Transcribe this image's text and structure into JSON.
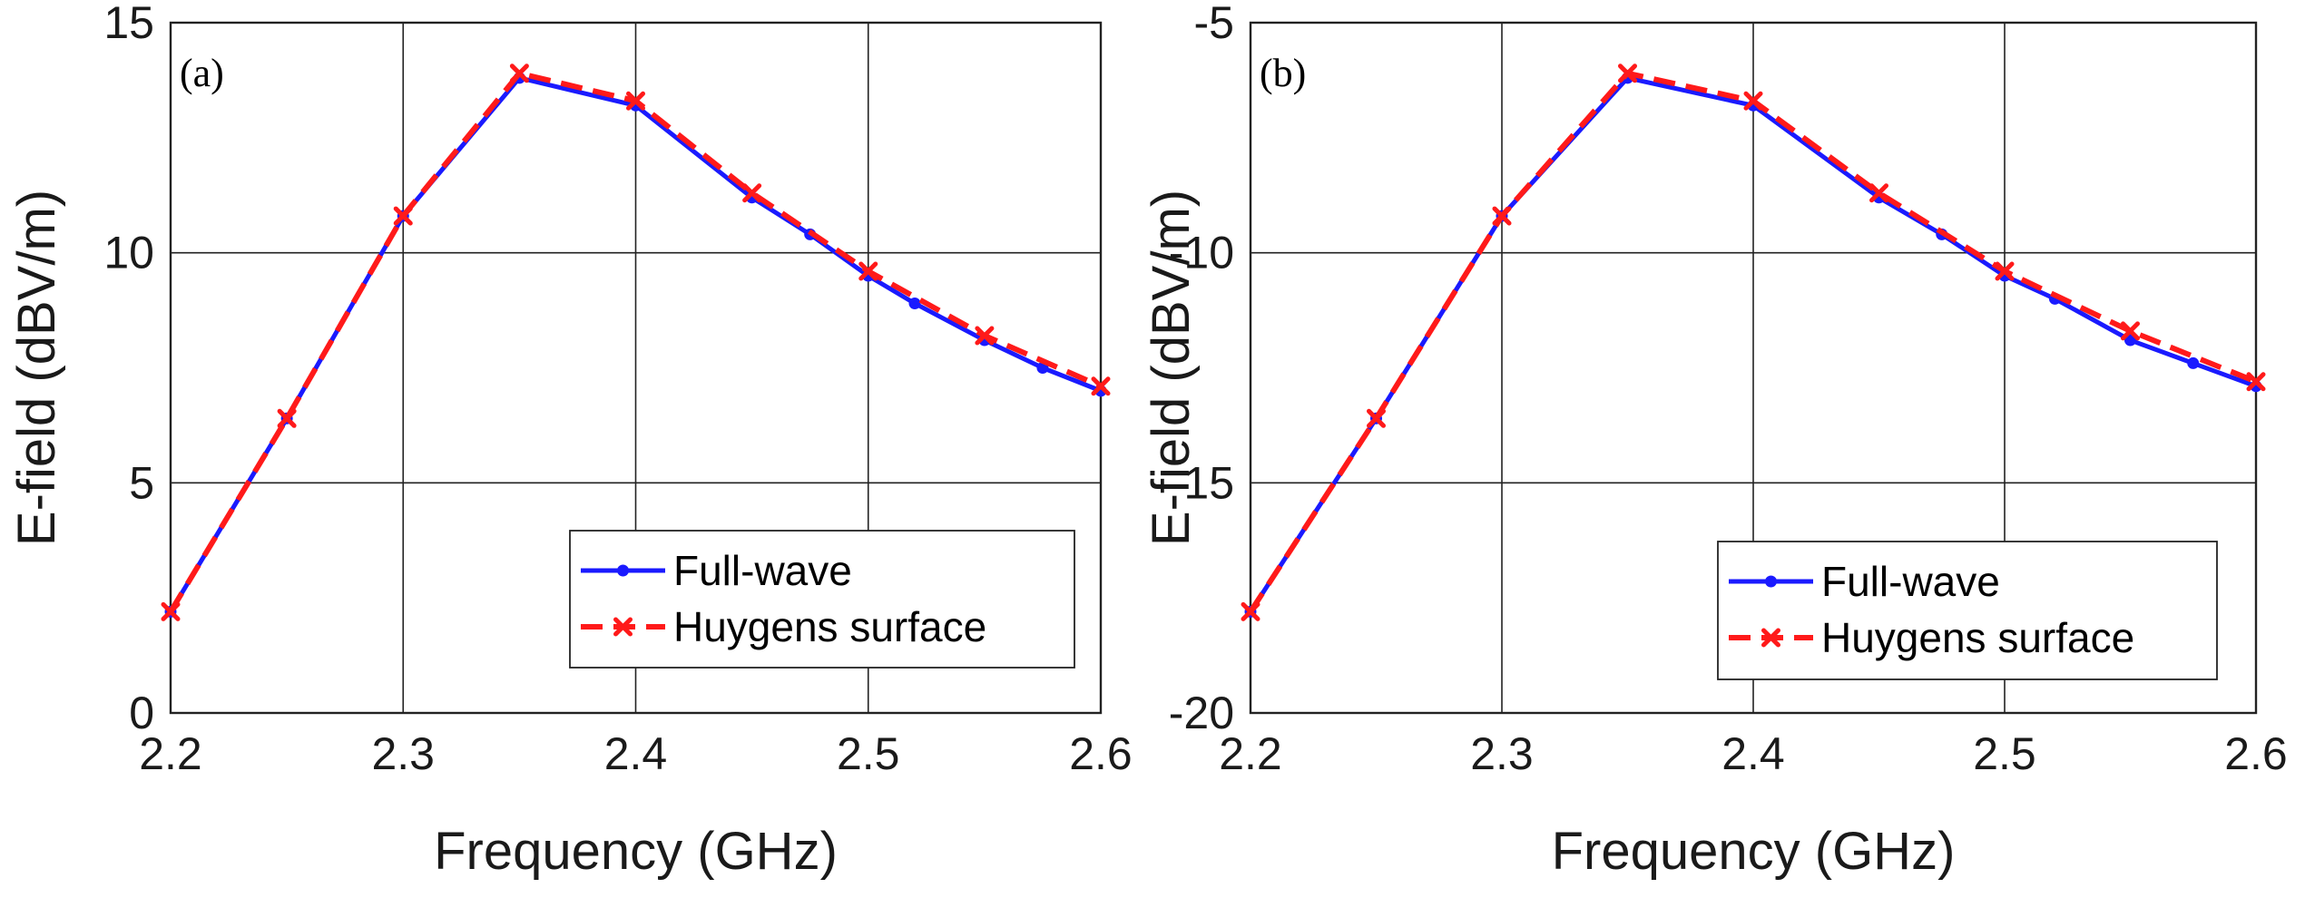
{
  "chart_data": [
    {
      "type": "line",
      "panel_label": "(a)",
      "xlabel": "Frequency (GHz)",
      "ylabel": "E-field (dBV/m)",
      "xlim": [
        2.2,
        2.6
      ],
      "ylim": [
        0,
        15
      ],
      "xticks": [
        "2.2",
        "2.3",
        "2.4",
        "2.5",
        "2.6"
      ],
      "yticks": [
        "0",
        "5",
        "10",
        "15"
      ],
      "grid": true,
      "legend_position": "bottom-right",
      "series": [
        {
          "name": "Full-wave",
          "color": "#1a1aff",
          "style": "solid",
          "marker": "dot",
          "x": [
            2.2,
            2.25,
            2.3,
            2.35,
            2.4,
            2.45,
            2.475,
            2.5,
            2.52,
            2.55,
            2.575,
            2.6
          ],
          "y": [
            2.2,
            6.4,
            10.8,
            13.8,
            13.2,
            11.2,
            10.4,
            9.5,
            8.9,
            8.1,
            7.5,
            7.0
          ]
        },
        {
          "name": "Huygens surface",
          "color": "#ff1a1a",
          "style": "dashed",
          "marker": "x",
          "x": [
            2.2,
            2.25,
            2.3,
            2.35,
            2.4,
            2.45,
            2.5,
            2.55,
            2.6
          ],
          "y": [
            2.2,
            6.4,
            10.8,
            13.9,
            13.3,
            11.3,
            9.6,
            8.2,
            7.1
          ]
        }
      ]
    },
    {
      "type": "line",
      "panel_label": "(b)",
      "xlabel": "Frequency (GHz)",
      "ylabel": "E-field (dBV/m)",
      "xlim": [
        2.2,
        2.6
      ],
      "ylim": [
        -20,
        -5
      ],
      "xticks": [
        "2.2",
        "2.3",
        "2.4",
        "2.5",
        "2.6"
      ],
      "yticks": [
        "-20",
        "-15",
        "-10",
        "-5"
      ],
      "grid": true,
      "legend_position": "bottom-right",
      "series": [
        {
          "name": "Full-wave",
          "color": "#1a1aff",
          "style": "solid",
          "marker": "dot",
          "x": [
            2.2,
            2.25,
            2.3,
            2.35,
            2.4,
            2.45,
            2.475,
            2.5,
            2.52,
            2.55,
            2.575,
            2.6
          ],
          "y": [
            -17.8,
            -13.6,
            -9.2,
            -6.2,
            -6.8,
            -8.8,
            -9.6,
            -10.5,
            -11.0,
            -11.9,
            -12.4,
            -12.9
          ]
        },
        {
          "name": "Huygens surface",
          "color": "#ff1a1a",
          "style": "dashed",
          "marker": "x",
          "x": [
            2.2,
            2.25,
            2.3,
            2.35,
            2.4,
            2.45,
            2.5,
            2.55,
            2.6
          ],
          "y": [
            -17.8,
            -13.6,
            -9.2,
            -6.1,
            -6.7,
            -8.7,
            -10.4,
            -11.7,
            -12.8
          ]
        }
      ]
    }
  ]
}
